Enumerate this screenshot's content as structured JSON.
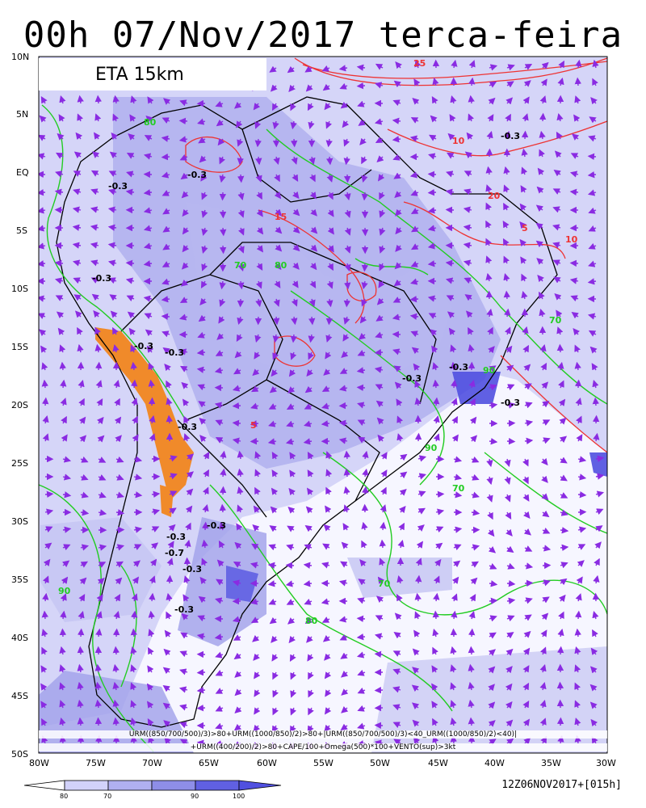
{
  "title": "00h 07/Nov/2017 terca-feira",
  "model_label": "ETA 15km",
  "formula_line1": "URM((850/700/500)/3)>80+URM((1000/850)/2)>80+|URM((850/700/500)/3)<40_URM((1000/850)/2)<40)|",
  "formula_line2": "+URM((400/200)/2)>80+CAPE/100+Omega(500)*100+VENTO(sup)>3kt",
  "footer_run": "12Z06NOV2017+[015h]",
  "lat_labels": [
    "10N",
    "5N",
    "EQ",
    "5S",
    "10S",
    "15S",
    "20S",
    "25S",
    "30S",
    "35S",
    "40S",
    "45S",
    "50S"
  ],
  "lon_labels": [
    "80W",
    "75W",
    "70W",
    "65W",
    "60W",
    "55W",
    "50W",
    "45W",
    "40W",
    "35W",
    "30W"
  ],
  "legend": {
    "ticks": [
      "80",
      "70",
      "90",
      "100"
    ],
    "colors": [
      "#f2f2ff",
      "#d2d2fa",
      "#b0b0f0",
      "#8e8ee8",
      "#5050e0"
    ]
  },
  "contour_labels_green": [
    "80",
    "70",
    "90"
  ],
  "contour_labels_red": [
    "5",
    "10",
    "15",
    "20",
    "25"
  ],
  "contour_labels_black": [
    "-0.3",
    "-0.7"
  ],
  "colors": {
    "humidity_contour": "#22cc22",
    "cape_contour": "#ee3333",
    "wind_vector": "#8a2be2",
    "terrain_orange": "#f08a2a",
    "coast": "#000000"
  }
}
